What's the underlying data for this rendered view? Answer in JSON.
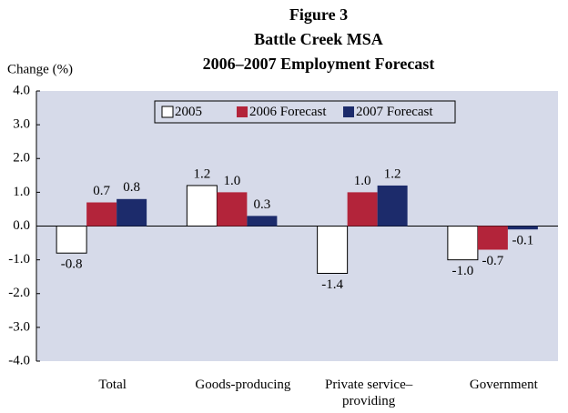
{
  "chart_data": {
    "type": "bar",
    "title": [
      "Figure 3",
      "Battle Creek MSA",
      "2006–2007 Employment Forecast"
    ],
    "y_label": "Change (%)",
    "categories": [
      "Total",
      "Goods-producing",
      "Private service–providing",
      "Government"
    ],
    "series": [
      {
        "name": "2005",
        "color": "#ffffff",
        "values": [
          -0.8,
          1.2,
          -1.4,
          -1.0
        ],
        "value_labels": [
          "-0.8",
          "1.2",
          "-1.4",
          "-1.0"
        ]
      },
      {
        "name": "2006 Forecast",
        "color": "#b3243a",
        "values": [
          0.7,
          1.0,
          1.0,
          -0.7
        ],
        "value_labels": [
          "0.7",
          "1.0",
          "1.0",
          "-0.7"
        ]
      },
      {
        "name": "2007 Forecast",
        "color": "#1c2b6b",
        "values": [
          0.8,
          0.3,
          1.2,
          -0.1
        ],
        "value_labels": [
          "0.8",
          "0.3",
          "1.2",
          "-0.1"
        ]
      }
    ],
    "ylim": [
      -4,
      4
    ],
    "yticks": [
      {
        "value": 4,
        "label": "4.0"
      },
      {
        "value": 3,
        "label": "3.0"
      },
      {
        "value": 2,
        "label": "2.0"
      },
      {
        "value": 1,
        "label": "1.0"
      },
      {
        "value": 0,
        "label": "0.0"
      },
      {
        "value": -1,
        "label": "-1.0"
      },
      {
        "value": -2,
        "label": "-2.0"
      },
      {
        "value": -3,
        "label": "-3.0"
      },
      {
        "value": -4,
        "label": "-4.0"
      }
    ],
    "grid": false,
    "legend": "top"
  }
}
